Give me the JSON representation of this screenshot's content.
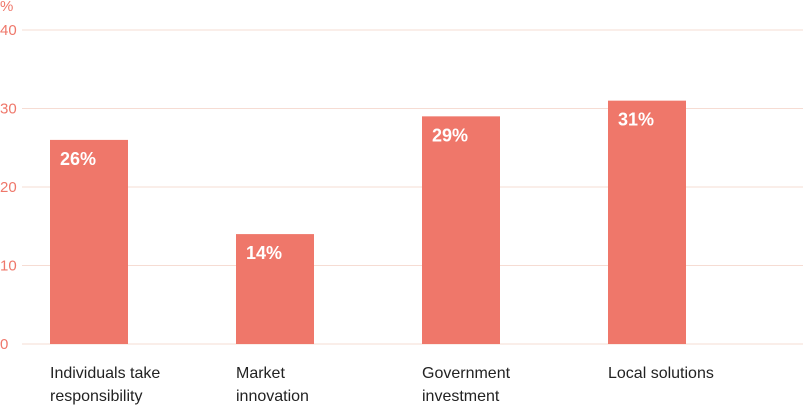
{
  "chart_data": {
    "type": "bar",
    "ylabel": "%",
    "ylim": [
      0,
      40
    ],
    "yticks": [
      0,
      10,
      20,
      30,
      40
    ],
    "grid": true,
    "colors": {
      "bar": "#ef776a",
      "axis_text": "#ef776a",
      "grid": "#f6dcd3",
      "label_text": "#222222"
    },
    "categories": [
      [
        "Individuals take",
        "responsibility"
      ],
      [
        "Market",
        "innovation"
      ],
      [
        "Government",
        "investment"
      ],
      [
        "Local solutions"
      ]
    ],
    "values": [
      26,
      14,
      29,
      31
    ],
    "data_labels": [
      "26%",
      "14%",
      "29%",
      "31%"
    ]
  }
}
